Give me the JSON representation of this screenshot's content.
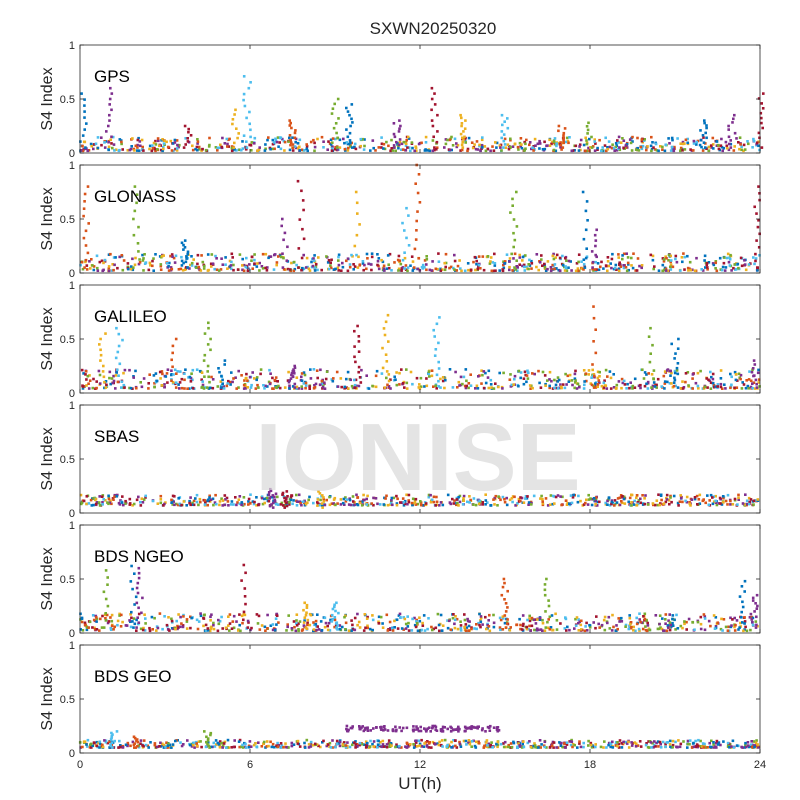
{
  "figure": {
    "title": "SXWN20250320",
    "xlabel": "UT(h)",
    "watermark": "IONISE"
  },
  "chart_data": [
    {
      "type": "scatter",
      "name": "GPS",
      "label": "GPS",
      "ylabel": "S4 Index",
      "xlim": [
        0,
        24
      ],
      "ylim": [
        0,
        1
      ],
      "xticks": [
        "0",
        "6",
        "12",
        "18",
        "24"
      ],
      "yticks": [
        "0",
        "0.5",
        "1"
      ],
      "baseline": [
        0.02,
        0.15
      ],
      "spikes": [
        [
          0.1,
          0.55
        ],
        [
          1.0,
          0.6
        ],
        [
          3.8,
          0.25
        ],
        [
          5.5,
          0.4
        ],
        [
          5.9,
          0.71
        ],
        [
          7.5,
          0.3
        ],
        [
          9.0,
          0.5
        ],
        [
          9.5,
          0.45
        ],
        [
          11.2,
          0.3
        ],
        [
          12.5,
          0.6
        ],
        [
          13.5,
          0.35
        ],
        [
          15.0,
          0.35
        ],
        [
          17.0,
          0.25
        ],
        [
          18.0,
          0.28
        ],
        [
          22.0,
          0.3
        ],
        [
          23.0,
          0.35
        ],
        [
          24.0,
          0.55
        ]
      ]
    },
    {
      "type": "scatter",
      "name": "GLONASS",
      "label": "GLONASS",
      "ylabel": "S4 Index",
      "xlim": [
        0,
        24
      ],
      "ylim": [
        0,
        1
      ],
      "xticks": [
        "0",
        "6",
        "12",
        "18",
        "24"
      ],
      "yticks": [
        "0",
        "0.5",
        "1"
      ],
      "baseline": [
        0.02,
        0.18
      ],
      "spikes": [
        [
          0.2,
          0.8
        ],
        [
          2.0,
          0.8
        ],
        [
          3.7,
          0.3
        ],
        [
          7.2,
          0.5
        ],
        [
          7.8,
          0.85
        ],
        [
          9.8,
          0.75
        ],
        [
          11.5,
          0.6
        ],
        [
          11.9,
          1.0
        ],
        [
          15.3,
          0.75
        ],
        [
          17.8,
          0.75
        ],
        [
          18.2,
          0.4
        ],
        [
          23.9,
          0.8
        ]
      ]
    },
    {
      "type": "scatter",
      "name": "GALILEO",
      "label": "GALILEO",
      "ylabel": "S4 Index",
      "xlim": [
        0,
        24
      ],
      "ylim": [
        0,
        1
      ],
      "xticks": [
        "0",
        "6",
        "12",
        "18",
        "24"
      ],
      "yticks": [
        "0",
        "0.5",
        "1"
      ],
      "baseline": [
        0.04,
        0.22
      ],
      "spikes": [
        [
          0.8,
          0.55
        ],
        [
          1.4,
          0.6
        ],
        [
          3.3,
          0.5
        ],
        [
          4.5,
          0.65
        ],
        [
          5.0,
          0.3
        ],
        [
          7.5,
          0.25
        ],
        [
          9.8,
          0.62
        ],
        [
          10.8,
          0.72
        ],
        [
          12.6,
          0.7
        ],
        [
          18.2,
          0.8
        ],
        [
          20.2,
          0.6
        ],
        [
          21.0,
          0.5
        ],
        [
          23.8,
          0.3
        ]
      ]
    },
    {
      "type": "scatter",
      "name": "SBAS",
      "label": "SBAS",
      "ylabel": "S4 Index",
      "xlim": [
        0,
        24
      ],
      "ylim": [
        0,
        1
      ],
      "xticks": [
        "0",
        "6",
        "12",
        "18",
        "24"
      ],
      "yticks": [
        "0",
        "0.5",
        "1"
      ],
      "baseline": [
        0.07,
        0.17
      ],
      "spikes": [
        [
          6.8,
          0.22
        ],
        [
          7.2,
          0.2
        ],
        [
          8.5,
          0.2
        ]
      ]
    },
    {
      "type": "scatter",
      "name": "BDS NGEO",
      "label": "BDS NGEO",
      "ylabel": "S4 Index",
      "xlim": [
        0,
        24
      ],
      "ylim": [
        0,
        1
      ],
      "xticks": [
        "0",
        "6",
        "12",
        "18",
        "24"
      ],
      "yticks": [
        "0",
        "0.5",
        "1"
      ],
      "baseline": [
        0.02,
        0.18
      ],
      "spikes": [
        [
          0.9,
          0.58
        ],
        [
          1.9,
          0.62
        ],
        [
          2.1,
          0.6
        ],
        [
          5.8,
          0.63
        ],
        [
          8.0,
          0.28
        ],
        [
          9.0,
          0.28
        ],
        [
          15.0,
          0.5
        ],
        [
          16.5,
          0.5
        ],
        [
          23.4,
          0.48
        ],
        [
          23.8,
          0.35
        ]
      ]
    },
    {
      "type": "scatter",
      "name": "BDS GEO",
      "label": "BDS GEO",
      "ylabel": "S4 Index",
      "xlim": [
        0,
        24
      ],
      "ylim": [
        0,
        1
      ],
      "xticks": [
        "0",
        "6",
        "12",
        "18",
        "24"
      ],
      "yticks": [
        "0",
        "0.5",
        "1"
      ],
      "baseline": [
        0.05,
        0.12
      ],
      "spikes": [
        [
          1.2,
          0.2
        ],
        [
          2.0,
          0.15
        ],
        [
          4.5,
          0.2
        ]
      ],
      "band": {
        "x": [
          9.3,
          14.8
        ],
        "y": [
          0.2,
          0.25
        ]
      }
    }
  ],
  "colors": [
    "#0072BD",
    "#D95319",
    "#EDB120",
    "#7E2F8E",
    "#77AC30",
    "#4DBEEE",
    "#A2142F"
  ]
}
